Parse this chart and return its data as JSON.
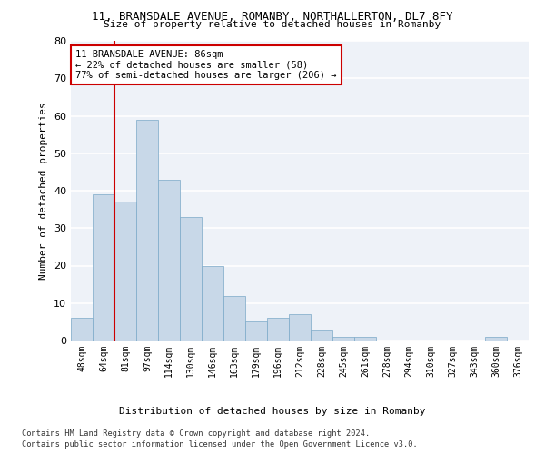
{
  "title": "11, BRANSDALE AVENUE, ROMANBY, NORTHALLERTON, DL7 8FY",
  "subtitle": "Size of property relative to detached houses in Romanby",
  "xlabel": "Distribution of detached houses by size in Romanby",
  "ylabel": "Number of detached properties",
  "bar_color": "#c8d8e8",
  "bar_edge_color": "#7aa8c8",
  "categories": [
    "48sqm",
    "64sqm",
    "81sqm",
    "97sqm",
    "114sqm",
    "130sqm",
    "146sqm",
    "163sqm",
    "179sqm",
    "196sqm",
    "212sqm",
    "228sqm",
    "245sqm",
    "261sqm",
    "278sqm",
    "294sqm",
    "310sqm",
    "327sqm",
    "343sqm",
    "360sqm",
    "376sqm"
  ],
  "values": [
    6,
    39,
    37,
    59,
    43,
    33,
    20,
    12,
    5,
    6,
    7,
    3,
    1,
    1,
    0,
    0,
    0,
    0,
    0,
    1,
    0
  ],
  "ylim": [
    0,
    80
  ],
  "yticks": [
    0,
    10,
    20,
    30,
    40,
    50,
    60,
    70,
    80
  ],
  "vline_index": 2,
  "vline_color": "#cc0000",
  "annotation_text": "11 BRANSDALE AVENUE: 86sqm\n← 22% of detached houses are smaller (58)\n77% of semi-detached houses are larger (206) →",
  "annotation_box_color": "white",
  "annotation_box_edgecolor": "#cc0000",
  "footer_line1": "Contains HM Land Registry data © Crown copyright and database right 2024.",
  "footer_line2": "Contains public sector information licensed under the Open Government Licence v3.0.",
  "background_color": "#eef2f8",
  "grid_color": "white"
}
